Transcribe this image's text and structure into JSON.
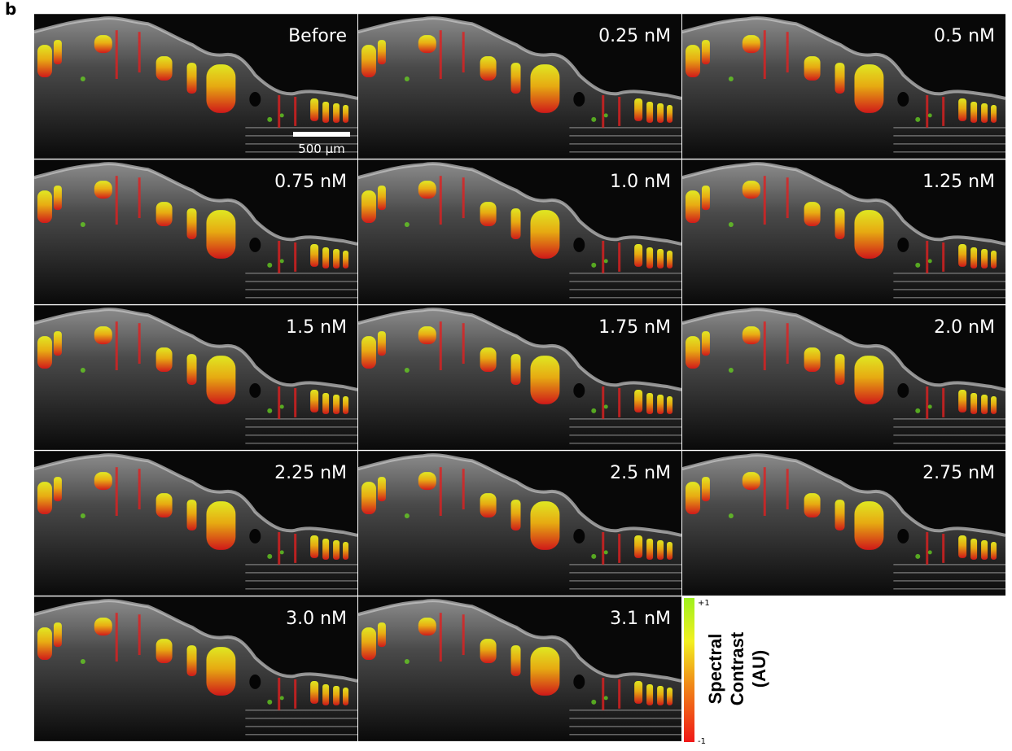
{
  "panel_label": "b",
  "panels": [
    {
      "label": "Before"
    },
    {
      "label": "0.25 nM"
    },
    {
      "label": "0.5 nM"
    },
    {
      "label": "0.75 nM"
    },
    {
      "label": "1.0 nM"
    },
    {
      "label": "1.25 nM"
    },
    {
      "label": "1.5 nM"
    },
    {
      "label": "1.75 nM"
    },
    {
      "label": "2.0 nM"
    },
    {
      "label": "2.25 nM"
    },
    {
      "label": "2.5 nM"
    },
    {
      "label": "2.75 nM"
    },
    {
      "label": "3.0 nM"
    },
    {
      "label": "3.1 nM"
    }
  ],
  "scale_bar": "500 µm",
  "colorbar": {
    "max_label": "+1",
    "min_label": "-1",
    "title_lines": [
      "Spectral",
      "Contrast",
      "(AU)"
    ]
  }
}
